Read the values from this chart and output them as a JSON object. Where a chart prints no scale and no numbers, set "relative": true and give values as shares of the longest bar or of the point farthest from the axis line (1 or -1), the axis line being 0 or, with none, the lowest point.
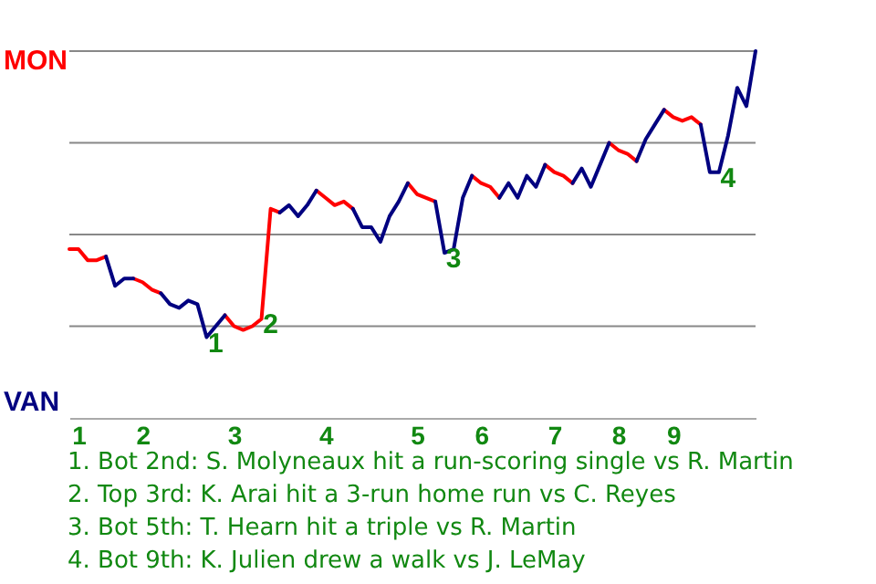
{
  "chart_data": {
    "type": "line",
    "relative": true,
    "categories": [
      null,
      "1",
      null,
      null,
      null,
      null,
      null,
      null,
      "2",
      null,
      null,
      null,
      null,
      null,
      null,
      null,
      null,
      null,
      "3",
      null,
      null,
      null,
      null,
      null,
      null,
      null,
      null,
      null,
      "4",
      null,
      null,
      null,
      null,
      null,
      null,
      null,
      null,
      null,
      "5",
      null,
      null,
      null,
      null,
      null,
      null,
      "6",
      null,
      null,
      null,
      null,
      null,
      null,
      null,
      "7",
      null,
      null,
      null,
      null,
      null,
      null,
      "8",
      null,
      null,
      null,
      null,
      null,
      "9",
      null,
      null,
      null,
      null,
      null,
      null,
      null,
      null,
      null
    ],
    "series": [
      {
        "color": "#ff0000",
        "values": [
          0.46,
          0.46,
          0.43,
          0.43,
          0.44,
          null,
          null,
          0.38,
          0.37,
          0.35,
          0.34,
          null,
          null,
          null,
          null,
          null,
          null,
          0.28,
          0.25,
          0.24,
          0.25,
          0.27,
          0.57,
          0.56,
          null,
          null,
          null,
          0.62,
          0.6,
          0.58,
          0.59,
          0.57,
          null,
          null,
          null,
          null,
          null,
          0.64,
          0.61,
          0.6,
          0.59,
          null,
          null,
          null,
          0.66,
          0.64,
          0.63,
          0.6,
          null,
          null,
          null,
          null,
          0.69,
          0.67,
          0.66,
          0.64,
          null,
          null,
          null,
          0.75,
          0.73,
          0.72,
          0.7,
          null,
          null,
          0.84,
          0.82,
          0.81,
          0.82,
          0.8,
          null,
          null,
          null,
          null,
          null,
          null
        ]
      },
      {
        "color": "#000080",
        "values": [
          null,
          null,
          null,
          null,
          0.44,
          0.36,
          0.38,
          0.38,
          null,
          null,
          0.34,
          0.31,
          0.3,
          0.32,
          0.31,
          0.22,
          0.25,
          0.28,
          null,
          null,
          null,
          null,
          null,
          0.56,
          0.58,
          0.55,
          0.58,
          0.62,
          null,
          null,
          null,
          0.57,
          0.52,
          0.52,
          0.48,
          0.55,
          0.59,
          0.64,
          null,
          null,
          0.59,
          0.45,
          0.46,
          0.6,
          0.66,
          null,
          null,
          0.6,
          0.64,
          0.6,
          0.66,
          0.63,
          0.69,
          null,
          null,
          0.64,
          0.68,
          0.63,
          0.69,
          0.75,
          null,
          null,
          0.7,
          0.76,
          0.8,
          0.84,
          null,
          null,
          null,
          0.8,
          0.67,
          0.67,
          0.77,
          0.9,
          0.85,
          1
        ]
      }
    ],
    "ref_lines": [
      {
        "axis": "y",
        "value": 0.25,
        "color": "#888888"
      },
      {
        "axis": "y",
        "value": 0.5,
        "color": "#888888"
      },
      {
        "axis": "y",
        "value": 0.75,
        "color": "#888888"
      },
      {
        "axis": "y",
        "value": 1,
        "color": "#888888"
      }
    ],
    "annotations": [
      "MON",
      "VAN",
      {
        "text": "1",
        "y": 0.22
      },
      {
        "text": "2",
        "y": 0.27
      },
      {
        "text": "3",
        "y": 0.45
      },
      {
        "text": "4",
        "y": 0.67
      },
      "1. Bot 2nd: S. Molyneaux hit a run-scoring single vs R. Martin",
      "2. Top 3rd: K. Arai hit a 3-run home run vs C. Reyes",
      "3. Bot 5th: T. Hearn hit a triple vs R. Martin",
      "4. Bot 9th: K. Julien drew a walk vs J. LeMay"
    ]
  }
}
